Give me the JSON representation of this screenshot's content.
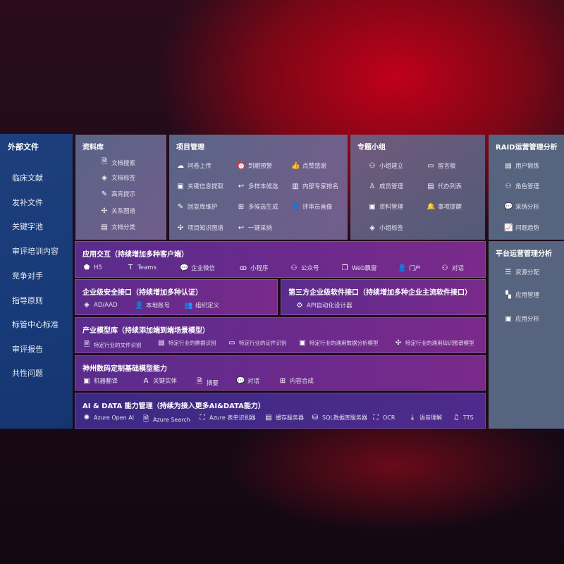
{
  "sidebar": {
    "title": "外部文件",
    "items": [
      "临床文献",
      "发补文件",
      "关键字池",
      "审评培训内容",
      "竞争对手",
      "指导原则",
      "标管中心标准",
      "审评报告",
      "共性问题"
    ]
  },
  "library": {
    "title": "资料库",
    "items": [
      {
        "icon": "doc-search-icon",
        "label": "文档搜索"
      },
      {
        "icon": "tag-icon",
        "label": "文档标签"
      },
      {
        "icon": "pen-icon",
        "label": "高亮提示"
      },
      {
        "icon": "graph-icon",
        "label": "关系图谱"
      },
      {
        "icon": "doc-category-icon",
        "label": "文档分类"
      }
    ]
  },
  "project": {
    "title": "项目管理",
    "items": [
      {
        "icon": "cloud-upload-icon",
        "label": "问卷上传"
      },
      {
        "icon": "alarm-icon",
        "label": "到期预警"
      },
      {
        "icon": "thumbs-up-icon",
        "label": "点赞感谢"
      },
      {
        "icon": "doc-extract-icon",
        "label": "关键信息提取"
      },
      {
        "icon": "reply-icon",
        "label": "多样本候选"
      },
      {
        "icon": "ranking-icon",
        "label": "内部专家排名"
      },
      {
        "icon": "edit-icon",
        "label": "回复库维护"
      },
      {
        "icon": "puzzle-icon",
        "label": "多候选生成"
      },
      {
        "icon": "user-icon",
        "label": "评审员画像"
      },
      {
        "icon": "graph-icon",
        "label": "项目知识图谱"
      },
      {
        "icon": "reply-icon",
        "label": "一键采纳"
      }
    ]
  },
  "group": {
    "title": "专题小组",
    "items": [
      {
        "icon": "users-icon",
        "label": "小组建立"
      },
      {
        "icon": "bbs-icon",
        "label": "留言板"
      },
      {
        "icon": "user-add-icon",
        "label": "成员管理"
      },
      {
        "icon": "clipboard-icon",
        "label": "代办列表"
      },
      {
        "icon": "folder-icon",
        "label": "资料管理"
      },
      {
        "icon": "bell-icon",
        "label": "事项提醒"
      },
      {
        "icon": "tag-icon",
        "label": "小组标签"
      }
    ]
  },
  "raid": {
    "title": "RAID运营管理分析",
    "items": [
      {
        "icon": "id-card-icon",
        "label": "用户锻炼"
      },
      {
        "icon": "users-icon",
        "label": "角色管理"
      },
      {
        "icon": "qa-icon",
        "label": "采纳分析"
      },
      {
        "icon": "trend-icon",
        "label": "问题趋势"
      }
    ]
  },
  "platform": {
    "title": "平台运营管理分析",
    "items": [
      {
        "icon": "checklist-icon",
        "label": "资源分配"
      },
      {
        "icon": "apps-icon",
        "label": "应用管理"
      },
      {
        "icon": "chart-icon",
        "label": "应用分析"
      }
    ]
  },
  "interaction": {
    "title": "应用交互（持续增加多种客户端）",
    "items": [
      {
        "icon": "html5-icon",
        "label": "H5"
      },
      {
        "icon": "teams-icon",
        "label": "Teams"
      },
      {
        "icon": "wechat-icon",
        "label": "企业微信"
      },
      {
        "icon": "miniprogram-icon",
        "label": "小程序"
      },
      {
        "icon": "users-icon",
        "label": "公众号"
      },
      {
        "icon": "window-icon",
        "label": "Web飘窗"
      },
      {
        "icon": "portal-icon",
        "label": "门户"
      },
      {
        "icon": "chat-users-icon",
        "label": "对话"
      }
    ]
  },
  "security": {
    "title": "企业级安全接口（持续增加多种认证）",
    "items": [
      {
        "icon": "ad-icon",
        "label": "AD/AAD"
      },
      {
        "icon": "local-account-icon",
        "label": "本地账号"
      },
      {
        "icon": "org-icon",
        "label": "组织定义"
      }
    ]
  },
  "thirdparty": {
    "title": "第三方企业级软件接口（持续增加多种企业主流软件接口）",
    "items": [
      {
        "icon": "api-gear-icon",
        "label": "API自动化设计器"
      }
    ]
  },
  "models": {
    "title": "产业模型库（持续添加端到端场景模型）",
    "items": [
      {
        "icon": "file-icon",
        "label": "特定行业的文件识别"
      },
      {
        "icon": "receipt-icon",
        "label": "特定行业的票据识别"
      },
      {
        "icon": "id-card-icon",
        "label": "特定行业的证件识别"
      },
      {
        "icon": "image-chart-icon",
        "label": "特定行业的通用数据分析模型"
      },
      {
        "icon": "graph-icon",
        "label": "特定行业的通用知识图谱模型"
      }
    ]
  },
  "base": {
    "title": "神州数码定制基础模型能力",
    "items": [
      {
        "icon": "translate-icon",
        "label": "机器翻译"
      },
      {
        "icon": "entity-icon",
        "label": "关键实体"
      },
      {
        "icon": "summary-icon",
        "label": "摘要"
      },
      {
        "icon": "chat-icon",
        "label": "对话"
      },
      {
        "icon": "compose-icon",
        "label": "内容合成"
      }
    ]
  },
  "aidata": {
    "title": "AI & DATA 能力管理（持续为接入更多AI&DATA能力）",
    "items": [
      {
        "icon": "openai-icon",
        "label": "Azure Open AI"
      },
      {
        "icon": "search-doc-icon",
        "label": "Azure Search"
      },
      {
        "icon": "form-recognizer-icon",
        "label": "Azure 表单识别器"
      },
      {
        "icon": "cache-icon",
        "label": "缓存服务器"
      },
      {
        "icon": "sql-icon",
        "label": "SQL数据库服务器"
      },
      {
        "icon": "ocr-icon",
        "label": "OCR"
      },
      {
        "icon": "speech-icon",
        "label": "语音理解"
      },
      {
        "icon": "tts-icon",
        "label": "TTS"
      }
    ]
  }
}
